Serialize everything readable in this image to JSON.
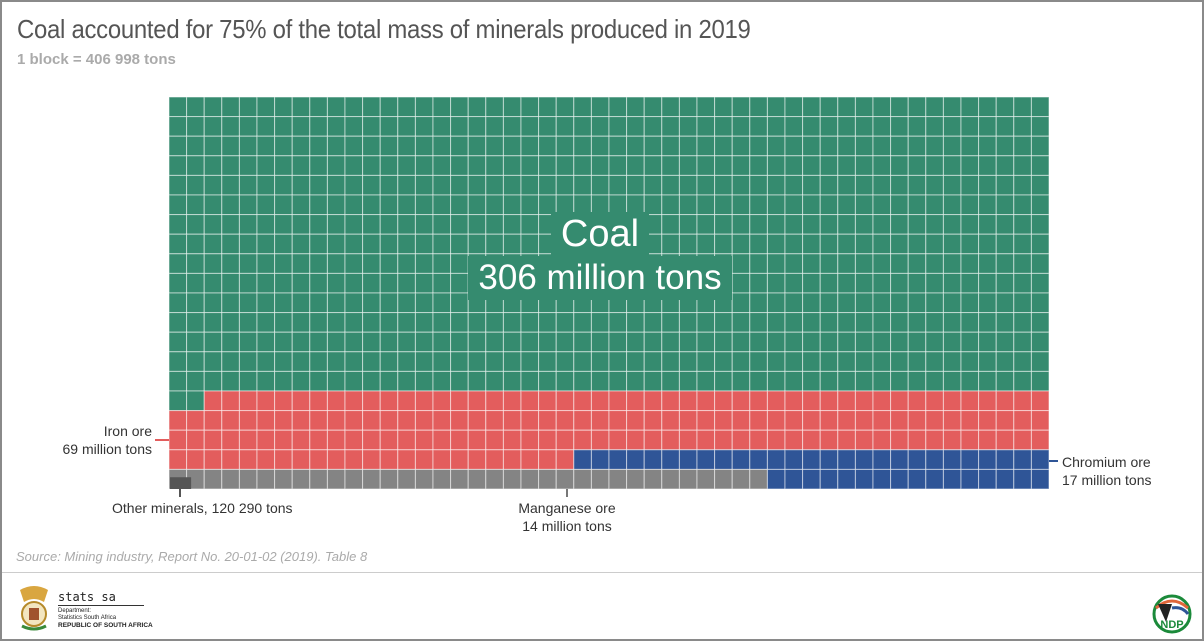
{
  "title": "Coal accounted for 75% of the total mass of minerals produced in 2019",
  "subtitle": "1 block = 406 998 tons",
  "source": "Source: Mining industry, Report No. 20-01-02 (2019). Table 8",
  "chart_data": {
    "type": "waffle",
    "grid": {
      "columns": 50,
      "rows": 20,
      "total_blocks": 1000
    },
    "block_tons": 406998,
    "series": [
      {
        "name": "Coal",
        "label": "306 million tons",
        "blocks": 752,
        "color": "#358b6f"
      },
      {
        "name": "Iron ore",
        "label": "69 million tons",
        "blocks": 171,
        "color": "#e35d5d"
      },
      {
        "name": "Chromium ore",
        "label": "17 million tons",
        "blocks": 43,
        "color": "#2f5597"
      },
      {
        "name": "Manganese ore",
        "label": "14 million tons",
        "blocks": 34,
        "color": "#848484"
      },
      {
        "name": "Other minerals",
        "label": "120 290 tons",
        "blocks": 0.3,
        "color": "#555555"
      }
    ]
  },
  "labels": {
    "coal_name": "Coal",
    "coal_value": "306 million tons",
    "iron_name": "Iron ore",
    "iron_value": "69 million tons",
    "chromium_name": "Chromium ore",
    "chromium_value": "17 million tons",
    "manganese_name": "Manganese ore",
    "manganese_value": "14 million tons",
    "other": "Other minerals, 120 290 tons"
  },
  "footer": {
    "org": "stats sa",
    "dept1": "Department:",
    "dept2": "Statistics South Africa",
    "country": "REPUBLIC OF SOUTH AFRICA",
    "ndp_logo": "NDP 2030"
  }
}
